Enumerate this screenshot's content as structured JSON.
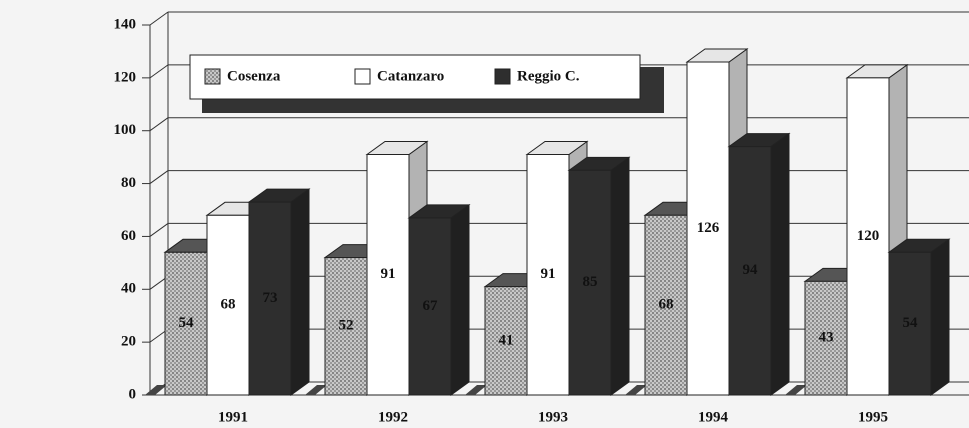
{
  "chart_data": {
    "type": "bar3d",
    "categories": [
      "1991",
      "1992",
      "1993",
      "1994",
      "1995"
    ],
    "series": [
      {
        "name": "Cosenza",
        "color": "#b9b9b9",
        "values": [
          54,
          52,
          41,
          68,
          43
        ]
      },
      {
        "name": "Catanzaro",
        "color": "#ffffff",
        "values": [
          68,
          91,
          91,
          126,
          120
        ]
      },
      {
        "name": "Reggio C.",
        "color": "#2e2e2e",
        "values": [
          73,
          67,
          85,
          94,
          54
        ]
      }
    ],
    "ylim": [
      0,
      140
    ],
    "yticks": [
      0,
      20,
      40,
      60,
      80,
      100,
      120,
      140
    ],
    "grid": true,
    "legend": "top-left"
  }
}
